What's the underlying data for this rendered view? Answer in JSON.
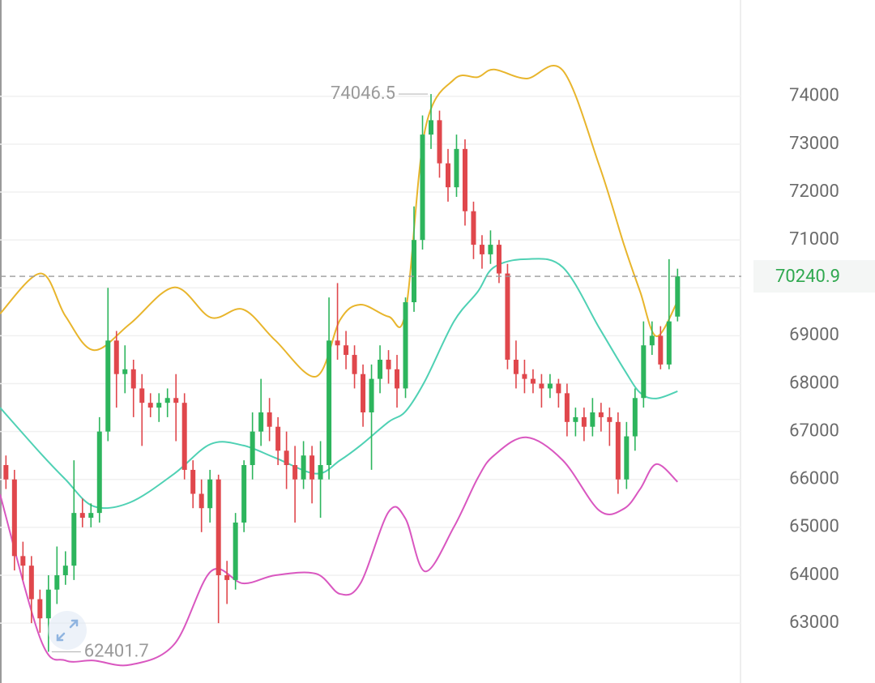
{
  "chart_data": {
    "type": "candlestick",
    "ylim": [
      61750,
      76010
    ],
    "xlim": [
      -0.7,
      86.5
    ],
    "yticks": [
      63000,
      64000,
      65000,
      66000,
      67000,
      68000,
      69000,
      70000,
      71000,
      72000,
      73000,
      74000
    ],
    "grid": true,
    "up_color": "#2db55d",
    "down_color": "#e0474c",
    "last_price": 70240.9,
    "last_price_color": "#2fa84f",
    "high_label": 74046.5,
    "low_label": 62401.7,
    "candles": {
      "open": [
        66300,
        66000,
        64400,
        64200,
        63500,
        63100,
        63700,
        64000,
        64200,
        65300,
        65200,
        65300,
        67000,
        68900,
        68200,
        68300,
        67900,
        67600,
        67500,
        67600,
        67700,
        67600,
        66200,
        65700,
        65400,
        66000,
        64000,
        63900,
        65100,
        66300,
        67000,
        67400,
        67100,
        66600,
        66300,
        66000,
        66500,
        66000,
        66300,
        68900,
        68800,
        68600,
        68200,
        67400,
        68100,
        68500,
        68300,
        67900,
        69700,
        71000,
        73200,
        73500,
        72600,
        72100,
        72900,
        71600,
        70900,
        70700,
        70900,
        70300,
        68500,
        68200,
        68100,
        68000,
        67900,
        68000,
        67800,
        67200,
        67300,
        67100,
        67400,
        67300,
        67200,
        66000,
        66900,
        67700,
        68800,
        69000,
        68400,
        69400
      ],
      "high": [
        66500,
        66200,
        64700,
        64400,
        63700,
        64000,
        64600,
        64500,
        66400,
        65600,
        65500,
        67300,
        70000,
        69100,
        68800,
        68500,
        68200,
        67800,
        67800,
        67900,
        68200,
        67800,
        66400,
        66000,
        66200,
        66100,
        64300,
        65300,
        66400,
        67400,
        68100,
        67700,
        67300,
        67000,
        66700,
        66800,
        66700,
        66800,
        69800,
        70100,
        69100,
        68800,
        68400,
        68400,
        68800,
        68700,
        68600,
        69800,
        71700,
        73600,
        74046.5,
        73700,
        72900,
        73200,
        73100,
        71800,
        71100,
        71200,
        71000,
        70500,
        68900,
        68500,
        68300,
        68200,
        68200,
        68100,
        68000,
        67500,
        67500,
        67700,
        67600,
        67500,
        67400,
        67200,
        67900,
        69300,
        69300,
        69200,
        70600,
        70400
      ],
      "low": [
        65800,
        64100,
        63900,
        63000,
        62800,
        62401.7,
        63400,
        63800,
        63900,
        65000,
        65000,
        65100,
        66800,
        67500,
        67800,
        67300,
        66700,
        67300,
        67200,
        67300,
        66800,
        66000,
        65400,
        64900,
        65100,
        63000,
        63400,
        63700,
        64900,
        66000,
        66700,
        66800,
        66300,
        65800,
        65100,
        65800,
        65500,
        65200,
        66000,
        68500,
        68300,
        67900,
        67100,
        66200,
        67800,
        68000,
        67500,
        67700,
        69500,
        70800,
        72900,
        72300,
        71800,
        71900,
        71300,
        70600,
        70400,
        70500,
        70100,
        68300,
        67900,
        67800,
        67800,
        67500,
        67700,
        67500,
        66900,
        66900,
        66800,
        66900,
        67000,
        66700,
        65700,
        65800,
        66600,
        67500,
        68600,
        68300,
        68300,
        69300
      ],
      "close": [
        66000,
        64400,
        64200,
        63500,
        63100,
        63700,
        64000,
        64200,
        65300,
        65200,
        65300,
        67000,
        68900,
        68200,
        68300,
        67900,
        67600,
        67500,
        67600,
        67700,
        67600,
        66200,
        65700,
        65400,
        66000,
        64000,
        63900,
        65100,
        66300,
        67000,
        67400,
        67100,
        66600,
        66300,
        66000,
        66500,
        66000,
        66300,
        68900,
        68800,
        68600,
        68200,
        67400,
        68100,
        68500,
        68300,
        67900,
        69700,
        71000,
        73200,
        73500,
        72600,
        72100,
        72900,
        71600,
        70900,
        70700,
        70900,
        70300,
        68500,
        68200,
        68100,
        68000,
        67900,
        68000,
        67800,
        67200,
        67300,
        67100,
        67400,
        67300,
        67200,
        66000,
        66900,
        67700,
        68800,
        69000,
        68400,
        69300,
        70240.9
      ]
    },
    "bands": {
      "x": [
        -0.7,
        4.1,
        7.0,
        10.3,
        14.6,
        19.8,
        24.1,
        27.9,
        31.7,
        36.5,
        39.3,
        41.7,
        45.0,
        47.0,
        49.3,
        52.7,
        55.5,
        57.4,
        61.2,
        65.5,
        69.8,
        72.7,
        74.6,
        76.5,
        79.0
      ],
      "series": [
        {
          "color": "#e8b52c",
          "values": [
            69460,
            70300,
            69410,
            68700,
            69250,
            70010,
            69380,
            69550,
            68900,
            68150,
            69330,
            69650,
            69400,
            69500,
            73300,
            74350,
            74400,
            74560,
            74370,
            74540,
            72550,
            70900,
            69920,
            68990,
            69720
          ]
        },
        {
          "color": "#4fd1b4",
          "values": [
            67500,
            66540,
            66000,
            65440,
            65520,
            66120,
            66740,
            66710,
            66450,
            66120,
            66400,
            66710,
            67200,
            67420,
            68060,
            69300,
            69920,
            70430,
            70600,
            70430,
            69160,
            68300,
            67810,
            67690,
            67840
          ]
        },
        {
          "color": "#d957c0",
          "values": [
            65690,
            62650,
            62220,
            62220,
            62130,
            62560,
            64080,
            63830,
            64000,
            64030,
            63610,
            63830,
            65320,
            65180,
            64080,
            65010,
            66030,
            66500,
            66880,
            66400,
            65350,
            65390,
            65800,
            66320,
            65950
          ]
        }
      ]
    }
  }
}
